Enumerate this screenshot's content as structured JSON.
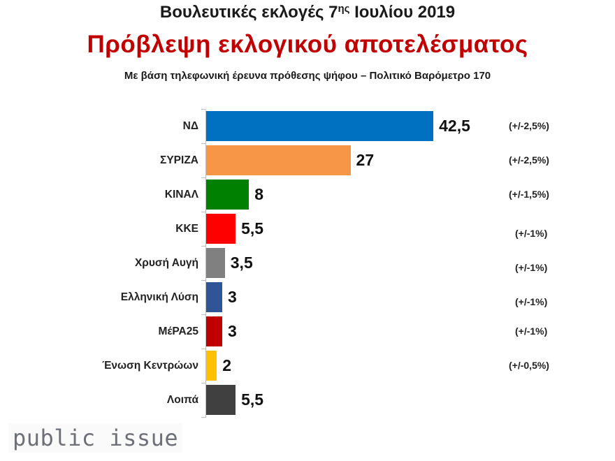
{
  "header": {
    "title_main": "Βουλευτικές εκλογές 7",
    "title_sup": "ης",
    "title_tail": " Ιουλίου 2019",
    "title_red": "Πρόβλεψη εκλογικού αποτελέσματος",
    "subtitle": "Με βάση τηλεφωνική έρευνα πρόθεσης ψήφου – Πολιτικό Βαρόμετρο 170"
  },
  "logo": "public issue",
  "chart_data": {
    "type": "bar",
    "orientation": "horizontal",
    "title": "Βουλευτικές εκλογές 7ης Ιουλίου 2019 — Πρόβλεψη εκλογικού αποτελέσματος",
    "subtitle": "Με βάση τηλεφωνική έρευνα πρόθεσης ψήφου – Πολιτικό Βαρόμετρο 170",
    "xlabel": "",
    "ylabel": "",
    "grid": false,
    "legend": "none",
    "categories": [
      "ΝΔ",
      "ΣΥΡΙΖΑ",
      "ΚΙΝΑΛ",
      "ΚΚΕ",
      "Χρυσή Αυγή",
      "Ελληνική Λύση",
      "ΜέΡΑ25",
      "Ένωση Κεντρώων",
      "Λοιπά"
    ],
    "values": [
      42.5,
      27,
      8,
      5.5,
      3.5,
      3,
      3,
      2,
      5.5
    ],
    "value_labels": [
      "42,5",
      "27",
      "8",
      "5,5",
      "3,5",
      "3",
      "3",
      "2",
      "5,5"
    ],
    "margins_of_error": [
      "(+/-2,5%)",
      "(+/-2,5%)",
      "(+/-1,5%)",
      "(+/-1%)",
      "(+/-1%)",
      "(+/-1%)",
      "(+/-1%)",
      "(+/-0,5%)",
      ""
    ],
    "colors": [
      "#0070c0",
      "#f79646",
      "#008000",
      "#ff0000",
      "#808080",
      "#2f5597",
      "#c00000",
      "#ffc000",
      "#404040"
    ]
  }
}
